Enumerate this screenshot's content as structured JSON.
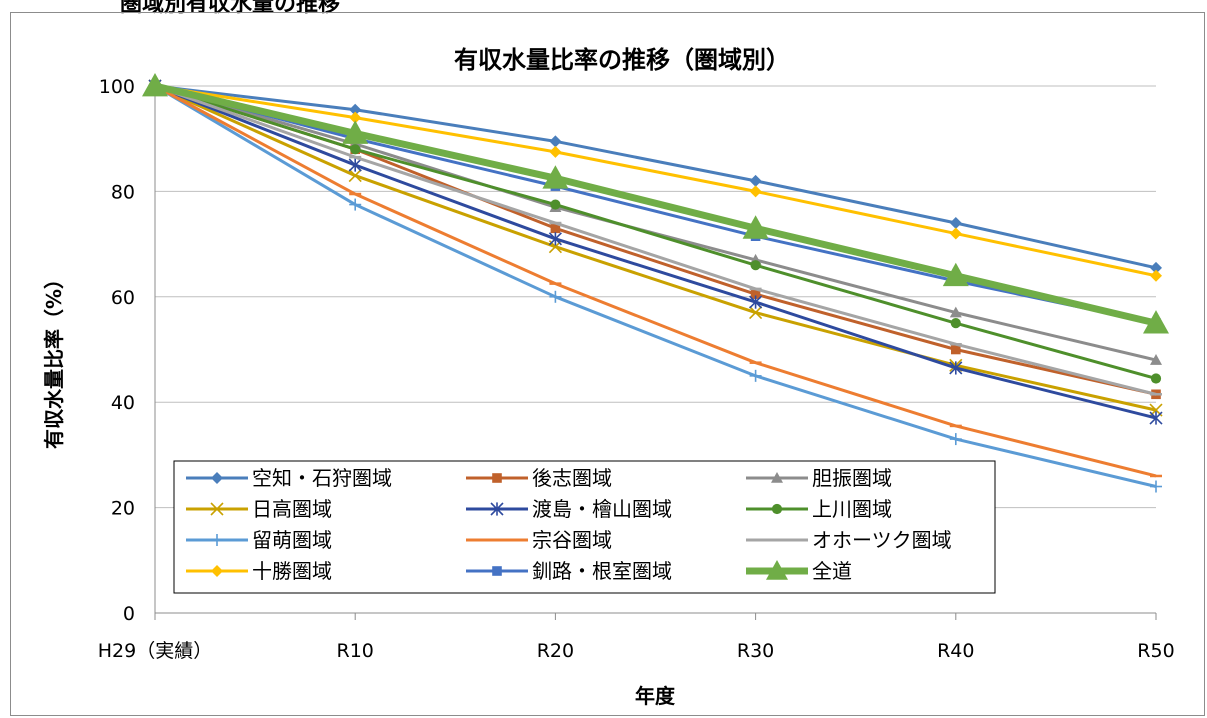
{
  "header": {
    "text": "圏域別有収水量の推移"
  },
  "chart_data": {
    "type": "line",
    "title": "有収水量比率の推移（圏域別）",
    "xlabel": "年度",
    "ylabel": "有収水量比率（%）",
    "categories": [
      "H29（実績）",
      "R10",
      "R20",
      "R30",
      "R40",
      "R50"
    ],
    "ylim": [
      0,
      100
    ],
    "yticks": [
      0,
      20,
      40,
      60,
      80,
      100
    ],
    "grid": true,
    "legend_position": "bottom-left",
    "series": [
      {
        "name": "空知・石狩圏域",
        "color": "#4A7EBB",
        "marker": "diamond",
        "values": [
          100,
          95.5,
          89.5,
          82,
          74,
          65.5
        ]
      },
      {
        "name": "後志圏域",
        "color": "#C0612B",
        "marker": "square",
        "values": [
          100,
          88,
          73,
          60.5,
          50,
          41.5
        ]
      },
      {
        "name": "胆振圏域",
        "color": "#8C8C8C",
        "marker": "triangle",
        "values": [
          100,
          89,
          77,
          67,
          57,
          48
        ]
      },
      {
        "name": "日高圏域",
        "color": "#C9A100",
        "marker": "x",
        "values": [
          100,
          83,
          69.5,
          57,
          47,
          38.5
        ]
      },
      {
        "name": "渡島・檜山圏域",
        "color": "#2E4A9E",
        "marker": "star",
        "values": [
          100,
          85,
          71,
          59,
          46.5,
          37
        ]
      },
      {
        "name": "上川圏域",
        "color": "#4E8F2B",
        "marker": "circle",
        "values": [
          100,
          88,
          77.5,
          66,
          55,
          44.5
        ]
      },
      {
        "name": "留萌圏域",
        "color": "#5B9BD5",
        "marker": "plus",
        "values": [
          100,
          77.5,
          60,
          45,
          33,
          24
        ]
      },
      {
        "name": "宗谷圏域",
        "color": "#ED7D31",
        "marker": "dash",
        "values": [
          100,
          79.5,
          62.5,
          47.5,
          35.5,
          26
        ]
      },
      {
        "name": "オホーツク圏域",
        "color": "#A5A5A5",
        "marker": "dash",
        "values": [
          100,
          86.5,
          74,
          61.5,
          51,
          41.5
        ]
      },
      {
        "name": "十勝圏域",
        "color": "#FFC000",
        "marker": "diamond",
        "values": [
          100,
          94,
          87.5,
          80,
          72,
          64
        ]
      },
      {
        "name": "釧路・根室圏域",
        "color": "#4472C4",
        "marker": "square",
        "values": [
          100,
          90,
          81,
          71.5,
          63,
          55
        ]
      },
      {
        "name": "全道",
        "color": "#70AD47",
        "marker": "triangle",
        "values": [
          100,
          91,
          82.5,
          73,
          64,
          55
        ],
        "thick": true
      }
    ]
  }
}
